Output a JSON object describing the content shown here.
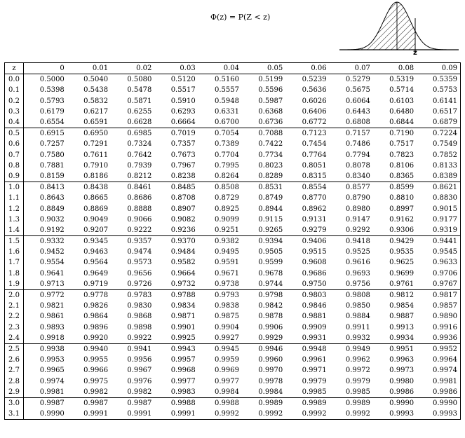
{
  "formula": "Φ(z) = P(Z < z)",
  "curve_label": "z",
  "table": {
    "headers": [
      "z",
      "0",
      "0.01",
      "0.02",
      "0.03",
      "0.04",
      "0.05",
      "0.06",
      "0.07",
      "0.08",
      "0.09"
    ],
    "rows": [
      {
        "z": "0.0",
        "values": [
          "0.5000",
          "0.5040",
          "0.5080",
          "0.5120",
          "0.5160",
          "0.5199",
          "0.5239",
          "0.5279",
          "0.5319",
          "0.5359"
        ]
      },
      {
        "z": "0.1",
        "values": [
          "0.5398",
          "0.5438",
          "0.5478",
          "0.5517",
          "0.5557",
          "0.5596",
          "0.5636",
          "0.5675",
          "0.5714",
          "0.5753"
        ]
      },
      {
        "z": "0.2",
        "values": [
          "0.5793",
          "0.5832",
          "0.5871",
          "0.5910",
          "0.5948",
          "0.5987",
          "0.6026",
          "0.6064",
          "0.6103",
          "0.6141"
        ]
      },
      {
        "z": "0.3",
        "values": [
          "0.6179",
          "0.6217",
          "0.6255",
          "0.6293",
          "0.6331",
          "0.6368",
          "0.6406",
          "0.6443",
          "0.6480",
          "0.6517"
        ]
      },
      {
        "z": "0.4",
        "values": [
          "0.6554",
          "0.6591",
          "0.6628",
          "0.6664",
          "0.6700",
          "0.6736",
          "0.6772",
          "0.6808",
          "0.6844",
          "0.6879"
        ]
      },
      {
        "z": "0.5",
        "values": [
          "0.6915",
          "0.6950",
          "0.6985",
          "0.7019",
          "0.7054",
          "0.7088",
          "0.7123",
          "0.7157",
          "0.7190",
          "0.7224"
        ]
      },
      {
        "z": "0.6",
        "values": [
          "0.7257",
          "0.7291",
          "0.7324",
          "0.7357",
          "0.7389",
          "0.7422",
          "0.7454",
          "0.7486",
          "0.7517",
          "0.7549"
        ]
      },
      {
        "z": "0.7",
        "values": [
          "0.7580",
          "0.7611",
          "0.7642",
          "0.7673",
          "0.7704",
          "0.7734",
          "0.7764",
          "0.7794",
          "0.7823",
          "0.7852"
        ]
      },
      {
        "z": "0.8",
        "values": [
          "0.7881",
          "0.7910",
          "0.7939",
          "0.7967",
          "0.7995",
          "0.8023",
          "0.8051",
          "0.8078",
          "0.8106",
          "0.8133"
        ]
      },
      {
        "z": "0.9",
        "values": [
          "0.8159",
          "0.8186",
          "0.8212",
          "0.8238",
          "0.8264",
          "0.8289",
          "0.8315",
          "0.8340",
          "0.8365",
          "0.8389"
        ]
      },
      {
        "z": "1.0",
        "values": [
          "0.8413",
          "0.8438",
          "0.8461",
          "0.8485",
          "0.8508",
          "0.8531",
          "0.8554",
          "0.8577",
          "0.8599",
          "0.8621"
        ]
      },
      {
        "z": "1.1",
        "values": [
          "0.8643",
          "0.8665",
          "0.8686",
          "0.8708",
          "0.8729",
          "0.8749",
          "0.8770",
          "0.8790",
          "0.8810",
          "0.8830"
        ]
      },
      {
        "z": "1.2",
        "values": [
          "0.8849",
          "0.8869",
          "0.8888",
          "0.8907",
          "0.8925",
          "0.8944",
          "0.8962",
          "0.8980",
          "0.8997",
          "0.9015"
        ]
      },
      {
        "z": "1.3",
        "values": [
          "0.9032",
          "0.9049",
          "0.9066",
          "0.9082",
          "0.9099",
          "0.9115",
          "0.9131",
          "0.9147",
          "0.9162",
          "0.9177"
        ]
      },
      {
        "z": "1.4",
        "values": [
          "0.9192",
          "0.9207",
          "0.9222",
          "0.9236",
          "0.9251",
          "0.9265",
          "0.9279",
          "0.9292",
          "0.9306",
          "0.9319"
        ]
      },
      {
        "z": "1.5",
        "values": [
          "0.9332",
          "0.9345",
          "0.9357",
          "0.9370",
          "0.9382",
          "0.9394",
          "0.9406",
          "0.9418",
          "0.9429",
          "0.9441"
        ]
      },
      {
        "z": "1.6",
        "values": [
          "0.9452",
          "0.9463",
          "0.9474",
          "0.9484",
          "0.9495",
          "0.9505",
          "0.9515",
          "0.9525",
          "0.9535",
          "0.9545"
        ]
      },
      {
        "z": "1.7",
        "values": [
          "0.9554",
          "0.9564",
          "0.9573",
          "0.9582",
          "0.9591",
          "0.9599",
          "0.9608",
          "0.9616",
          "0.9625",
          "0.9633"
        ]
      },
      {
        "z": "1.8",
        "values": [
          "0.9641",
          "0.9649",
          "0.9656",
          "0.9664",
          "0.9671",
          "0.9678",
          "0.9686",
          "0.9693",
          "0.9699",
          "0.9706"
        ]
      },
      {
        "z": "1.9",
        "values": [
          "0.9713",
          "0.9719",
          "0.9726",
          "0.9732",
          "0.9738",
          "0.9744",
          "0.9750",
          "0.9756",
          "0.9761",
          "0.9767"
        ]
      },
      {
        "z": "2.0",
        "values": [
          "0.9772",
          "0.9778",
          "0.9783",
          "0.9788",
          "0.9793",
          "0.9798",
          "0.9803",
          "0.9808",
          "0.9812",
          "0.9817"
        ]
      },
      {
        "z": "2.1",
        "values": [
          "0.9821",
          "0.9826",
          "0.9830",
          "0.9834",
          "0.9838",
          "0.9842",
          "0.9846",
          "0.9850",
          "0.9854",
          "0.9857"
        ]
      },
      {
        "z": "2.2",
        "values": [
          "0.9861",
          "0.9864",
          "0.9868",
          "0.9871",
          "0.9875",
          "0.9878",
          "0.9881",
          "0.9884",
          "0.9887",
          "0.9890"
        ]
      },
      {
        "z": "2.3",
        "values": [
          "0.9893",
          "0.9896",
          "0.9898",
          "0.9901",
          "0.9904",
          "0.9906",
          "0.9909",
          "0.9911",
          "0.9913",
          "0.9916"
        ]
      },
      {
        "z": "2.4",
        "values": [
          "0.9918",
          "0.9920",
          "0.9922",
          "0.9925",
          "0.9927",
          "0.9929",
          "0.9931",
          "0.9932",
          "0.9934",
          "0.9936"
        ]
      },
      {
        "z": "2.5",
        "values": [
          "0.9938",
          "0.9940",
          "0.9941",
          "0.9943",
          "0.9945",
          "0.9946",
          "0.9948",
          "0.9949",
          "0.9951",
          "0.9952"
        ]
      },
      {
        "z": "2.6",
        "values": [
          "0.9953",
          "0.9955",
          "0.9956",
          "0.9957",
          "0.9959",
          "0.9960",
          "0.9961",
          "0.9962",
          "0.9963",
          "0.9964"
        ]
      },
      {
        "z": "2.7",
        "values": [
          "0.9965",
          "0.9966",
          "0.9967",
          "0.9968",
          "0.9969",
          "0.9970",
          "0.9971",
          "0.9972",
          "0.9973",
          "0.9974"
        ]
      },
      {
        "z": "2.8",
        "values": [
          "0.9974",
          "0.9975",
          "0.9976",
          "0.9977",
          "0.9977",
          "0.9978",
          "0.9979",
          "0.9979",
          "0.9980",
          "0.9981"
        ]
      },
      {
        "z": "2.9",
        "values": [
          "0.9981",
          "0.9982",
          "0.9982",
          "0.9983",
          "0.9984",
          "0.9984",
          "0.9985",
          "0.9985",
          "0.9986",
          "0.9986"
        ]
      },
      {
        "z": "3.0",
        "values": [
          "0.9987",
          "0.9987",
          "0.9987",
          "0.9988",
          "0.9988",
          "0.9989",
          "0.9989",
          "0.9989",
          "0.9990",
          "0.9990"
        ]
      },
      {
        "z": "3.1",
        "values": [
          "0.9990",
          "0.9991",
          "0.9991",
          "0.9991",
          "0.9992",
          "0.9992",
          "0.9992",
          "0.9992",
          "0.9993",
          "0.9993"
        ]
      }
    ]
  }
}
